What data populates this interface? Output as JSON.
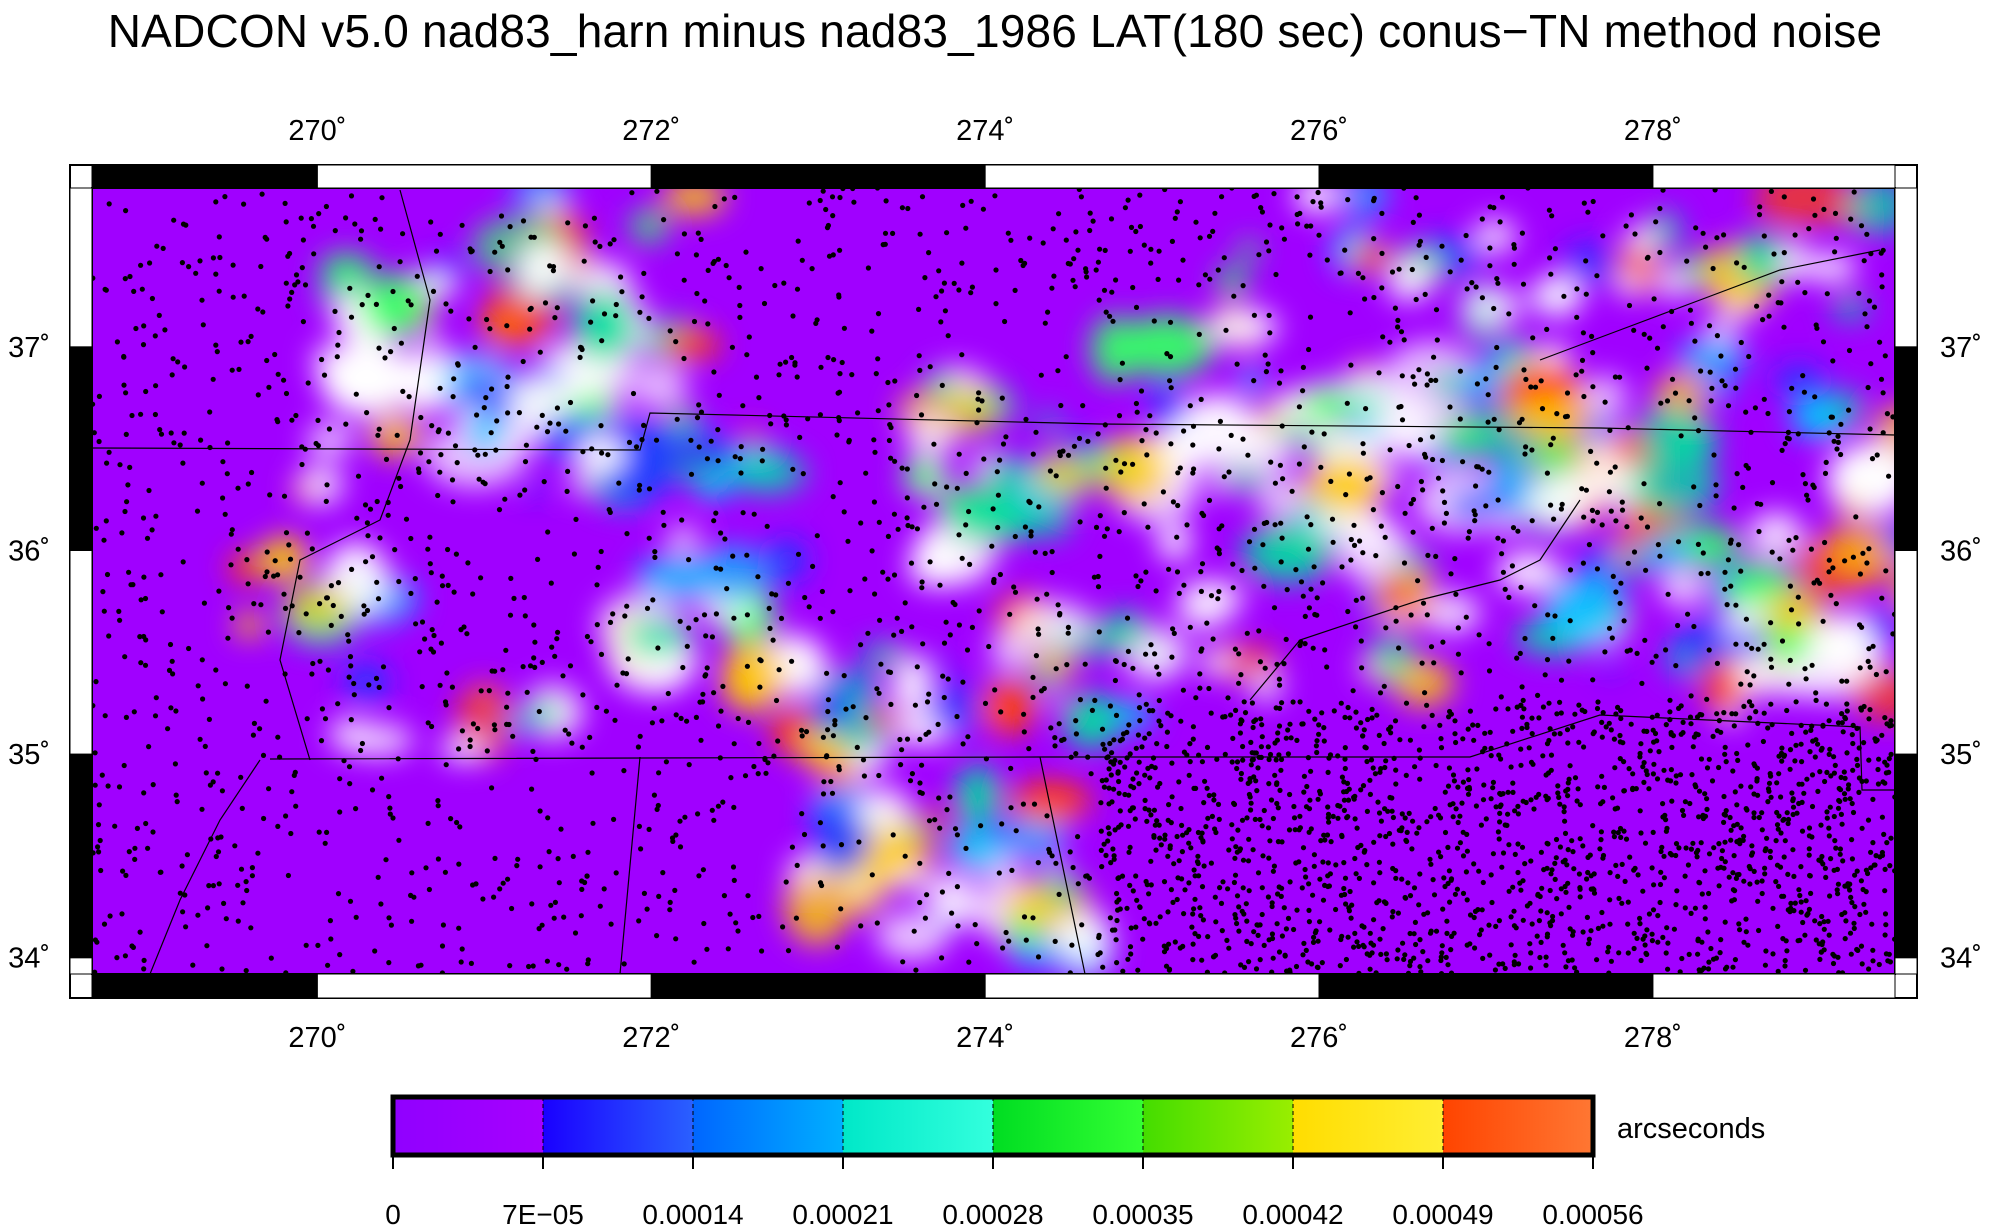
{
  "title": "NADCON v5.0 nad83_harn minus nad83_1986 LAT(180 sec) conus−TN method noise",
  "map": {
    "lon_range": [
      268.65,
      279.45
    ],
    "lat_range": [
      33.92,
      37.78
    ],
    "lon_ticks": [
      270,
      272,
      274,
      276,
      278
    ],
    "lat_ticks": [
      34,
      35,
      36,
      37
    ],
    "tick_labels_x": [
      "270˚",
      "272˚",
      "274˚",
      "276˚",
      "278˚"
    ],
    "tick_labels_y": [
      "34˚",
      "35˚",
      "36˚",
      "37˚"
    ],
    "lon_label_unit": "˚",
    "lat_label_unit": "˚"
  },
  "colorbar": {
    "unit_label": "arcseconds",
    "tick_labels": [
      "0",
      "7E−05",
      "0.00014",
      "0.00021",
      "0.00028",
      "0.00035",
      "0.00042",
      "0.00049",
      "0.00056"
    ],
    "colors": [
      [
        "#9000ff",
        "#a600ff"
      ],
      [
        "#1a00ff",
        "#2a60ff"
      ],
      [
        "#0066ff",
        "#00b0ff"
      ],
      [
        "#00e8c8",
        "#33ffdd"
      ],
      [
        "#00dd22",
        "#33ff33"
      ],
      [
        "#44dd00",
        "#99ee00"
      ],
      [
        "#ffdd00",
        "#ffee33"
      ],
      [
        "#ff4400",
        "#ff7733"
      ]
    ]
  },
  "colors": {
    "background_field": "#a000ff",
    "station_dots": "#000000",
    "frame": "#000000"
  }
}
